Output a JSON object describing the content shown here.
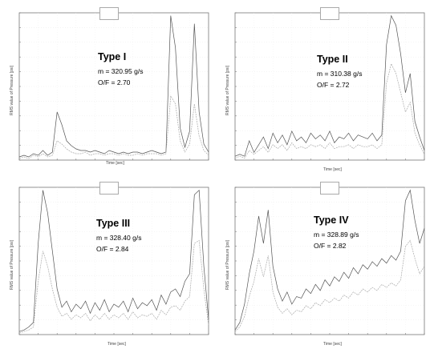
{
  "chart_data": [
    {
      "type": "line",
      "title": "Type I",
      "annotation": {
        "label": "Type I",
        "mdot": "m = 320.95 g/s",
        "of": "O/F = 2.70"
      },
      "xlabel": "Time [sec]",
      "ylabel": "RMS value of Pressure [psi]",
      "x": [
        0,
        0.25,
        0.5,
        0.75,
        1,
        1.25,
        1.5,
        1.75,
        2,
        2.25,
        2.5,
        2.75,
        3,
        3.25,
        3.5,
        3.75,
        4,
        4.25,
        4.5,
        4.75,
        5,
        5.25,
        5.5,
        5.75,
        6,
        6.25,
        6.5,
        6.75,
        7,
        7.25,
        7.5,
        7.75,
        8,
        8.25,
        8.5,
        8.75,
        9,
        9.25,
        9.5,
        9.75,
        10
      ],
      "series": [
        {
          "values": [
            2,
            3,
            2,
            4,
            3,
            6,
            3,
            5,
            30,
            22,
            12,
            9,
            7,
            6,
            6,
            5,
            6,
            5,
            4,
            6,
            5,
            4,
            5,
            4,
            5,
            5,
            4,
            5,
            6,
            5,
            4,
            5,
            90,
            70,
            20,
            8,
            18,
            85,
            30,
            10,
            5
          ]
        },
        {
          "values": [
            1,
            2,
            1,
            3,
            2,
            4,
            2,
            3,
            12,
            10,
            7,
            5,
            4,
            4,
            5,
            3,
            4,
            4,
            3,
            4,
            4,
            3,
            4,
            3,
            3,
            4,
            3,
            4,
            4,
            4,
            3,
            4,
            40,
            35,
            12,
            5,
            10,
            35,
            15,
            6,
            3
          ]
        }
      ]
    },
    {
      "type": "line",
      "title": "Type II",
      "annotation": {
        "label": "Type II",
        "mdot": "m = 310.38 g/s",
        "of": "O/F = 2.72"
      },
      "xlabel": "Time [sec]",
      "ylabel": "RMS value of Pressure [psi]",
      "x": [
        0,
        0.25,
        0.5,
        0.75,
        1,
        1.25,
        1.5,
        1.75,
        2,
        2.25,
        2.5,
        2.75,
        3,
        3.25,
        3.5,
        3.75,
        4,
        4.25,
        4.5,
        4.75,
        5,
        5.25,
        5.5,
        5.75,
        6,
        6.25,
        6.5,
        6.75,
        7,
        7.25,
        7.5,
        7.75,
        8,
        8.25,
        8.5,
        8.75,
        9,
        9.25,
        9.5,
        9.75,
        10
      ],
      "series": [
        {
          "values": [
            2,
            3,
            2,
            10,
            4,
            8,
            12,
            6,
            14,
            9,
            13,
            8,
            15,
            10,
            12,
            9,
            14,
            11,
            13,
            10,
            15,
            9,
            12,
            11,
            14,
            10,
            13,
            12,
            11,
            14,
            10,
            13,
            60,
            75,
            70,
            55,
            35,
            45,
            20,
            12,
            5
          ]
        },
        {
          "values": [
            1,
            2,
            1,
            5,
            3,
            5,
            7,
            4,
            8,
            6,
            8,
            5,
            9,
            6,
            7,
            6,
            8,
            7,
            8,
            6,
            9,
            6,
            7,
            7,
            8,
            6,
            8,
            7,
            7,
            8,
            6,
            8,
            40,
            50,
            45,
            35,
            25,
            30,
            14,
            8,
            3
          ]
        }
      ]
    },
    {
      "type": "line",
      "title": "Type III",
      "annotation": {
        "label": "Type III",
        "mdot": "m = 328.40 g/s",
        "of": "O/F = 2.84"
      },
      "xlabel": "Time [sec]",
      "ylabel": "RMS value of Pressure [psi]",
      "x": [
        0,
        0.25,
        0.5,
        0.75,
        1,
        1.25,
        1.5,
        1.75,
        2,
        2.25,
        2.5,
        2.75,
        3,
        3.25,
        3.5,
        3.75,
        4,
        4.25,
        4.5,
        4.75,
        5,
        5.25,
        5.5,
        5.75,
        6,
        6.25,
        6.5,
        6.75,
        7,
        7.25,
        7.5,
        7.75,
        8,
        8.25,
        8.5,
        8.75,
        9,
        9.25,
        9.5,
        9.75,
        10
      ],
      "series": [
        {
          "values": [
            2,
            3,
            5,
            8,
            60,
            95,
            80,
            55,
            30,
            18,
            22,
            15,
            20,
            17,
            22,
            14,
            21,
            16,
            23,
            15,
            20,
            18,
            22,
            15,
            24,
            17,
            21,
            19,
            23,
            16,
            26,
            20,
            28,
            30,
            25,
            35,
            40,
            92,
            95,
            45,
            10
          ]
        },
        {
          "values": [
            1,
            2,
            3,
            5,
            35,
            55,
            45,
            30,
            18,
            12,
            14,
            10,
            13,
            11,
            14,
            9,
            13,
            10,
            14,
            10,
            13,
            11,
            14,
            10,
            15,
            11,
            13,
            12,
            14,
            10,
            16,
            13,
            18,
            19,
            16,
            22,
            25,
            60,
            62,
            30,
            6
          ]
        }
      ]
    },
    {
      "type": "line",
      "title": "Type IV",
      "annotation": {
        "label": "Type IV",
        "mdot": "m = 328.89 g/s",
        "of": "O/F = 2.82"
      },
      "xlabel": "Time [sec]",
      "ylabel": "RMS value of Pressure [psi]",
      "x": [
        0,
        0.25,
        0.5,
        0.75,
        1,
        1.25,
        1.5,
        1.75,
        2,
        2.25,
        2.5,
        2.75,
        3,
        3.25,
        3.5,
        3.75,
        4,
        4.25,
        4.5,
        4.75,
        5,
        5.25,
        5.5,
        5.75,
        6,
        6.25,
        6.5,
        6.75,
        7,
        7.25,
        7.5,
        7.75,
        8,
        8.25,
        8.5,
        8.75,
        9,
        9.25,
        9.5,
        9.75,
        10
      ],
      "series": [
        {
          "values": [
            3,
            8,
            20,
            40,
            55,
            78,
            60,
            82,
            45,
            30,
            22,
            28,
            20,
            25,
            24,
            30,
            27,
            33,
            29,
            36,
            32,
            38,
            35,
            41,
            37,
            44,
            40,
            46,
            43,
            48,
            45,
            50,
            47,
            52,
            49,
            55,
            88,
            95,
            75,
            60,
            70
          ]
        },
        {
          "values": [
            2,
            5,
            12,
            25,
            35,
            50,
            38,
            52,
            28,
            18,
            14,
            17,
            13,
            16,
            15,
            19,
            17,
            21,
            19,
            23,
            21,
            24,
            22,
            26,
            24,
            28,
            26,
            30,
            28,
            31,
            29,
            33,
            31,
            34,
            32,
            36,
            58,
            62,
            50,
            40,
            45
          ]
        }
      ]
    }
  ]
}
